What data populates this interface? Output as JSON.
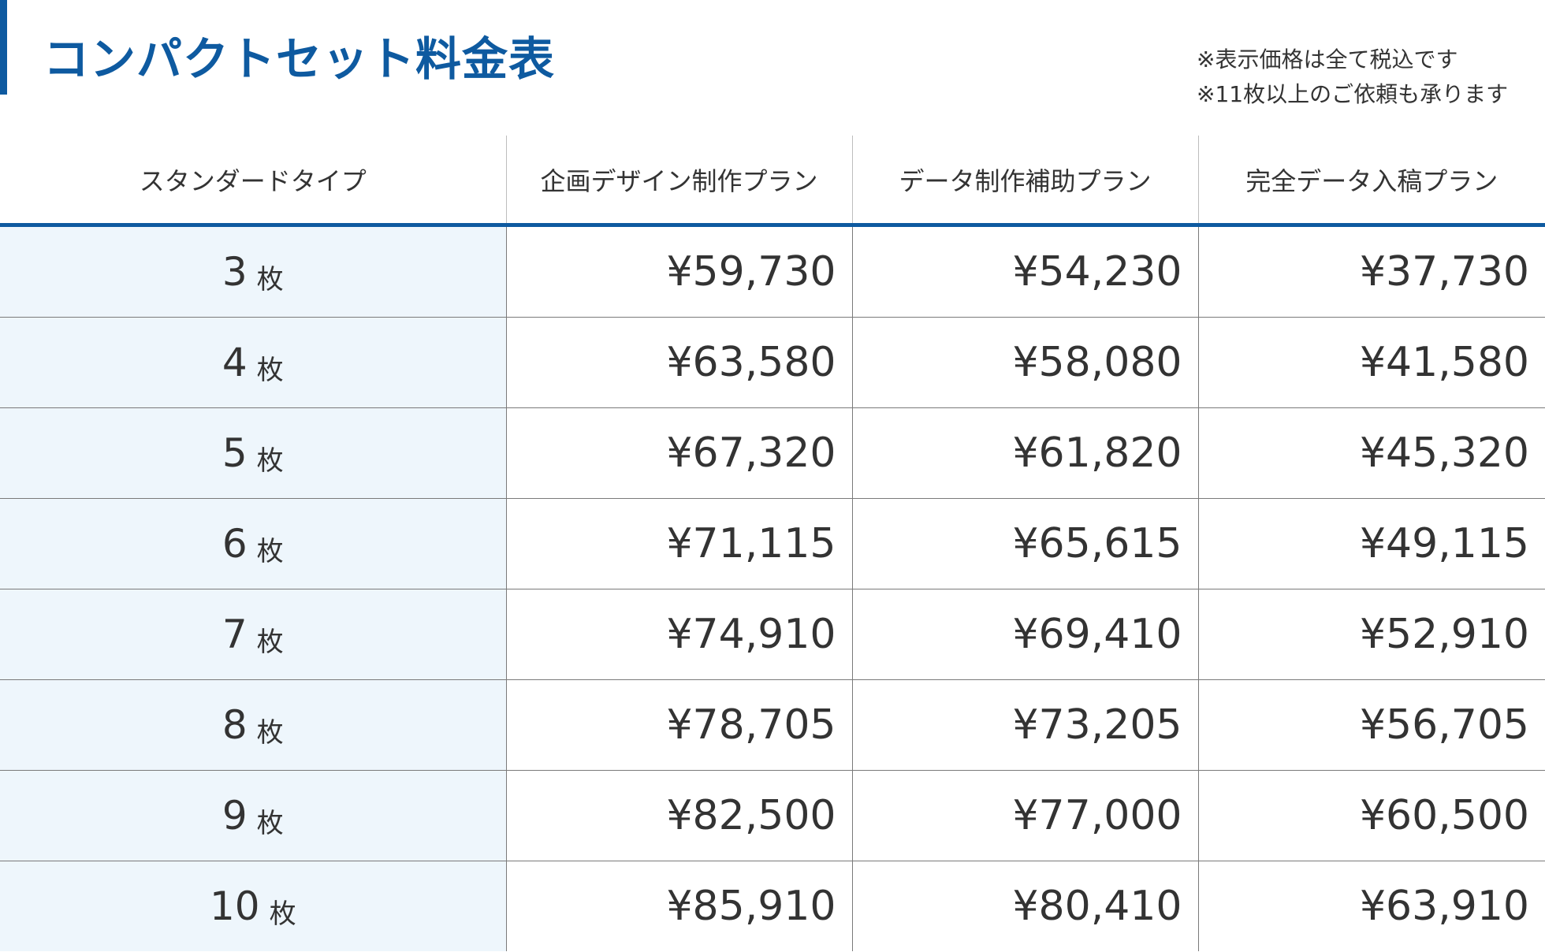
{
  "title": "コンパクトセット料金表",
  "notes": [
    "※表示価格は全て税込です",
    "※11枚以上のご依頼も承ります"
  ],
  "table": {
    "headers": [
      "スタンダードタイプ",
      "企画デザイン制作プラン",
      "データ制作補助プラン",
      "完全データ入稿プラン"
    ],
    "unit": "枚",
    "rows": [
      {
        "qty": "3",
        "prices": [
          "¥59,730",
          "¥54,230",
          "¥37,730"
        ]
      },
      {
        "qty": "4",
        "prices": [
          "¥63,580",
          "¥58,080",
          "¥41,580"
        ]
      },
      {
        "qty": "5",
        "prices": [
          "¥67,320",
          "¥61,820",
          "¥45,320"
        ]
      },
      {
        "qty": "6",
        "prices": [
          "¥71,115",
          "¥65,615",
          "¥49,115"
        ]
      },
      {
        "qty": "7",
        "prices": [
          "¥74,910",
          "¥69,410",
          "¥52,910"
        ]
      },
      {
        "qty": "8",
        "prices": [
          "¥78,705",
          "¥73,205",
          "¥56,705"
        ]
      },
      {
        "qty": "9",
        "prices": [
          "¥82,500",
          "¥77,000",
          "¥60,500"
        ]
      },
      {
        "qty": "10",
        "prices": [
          "¥85,910",
          "¥80,410",
          "¥63,910"
        ]
      }
    ]
  },
  "colors": {
    "accent": "#0e5aa0",
    "first_column_bg": "#eef6fc",
    "text": "#333333"
  }
}
